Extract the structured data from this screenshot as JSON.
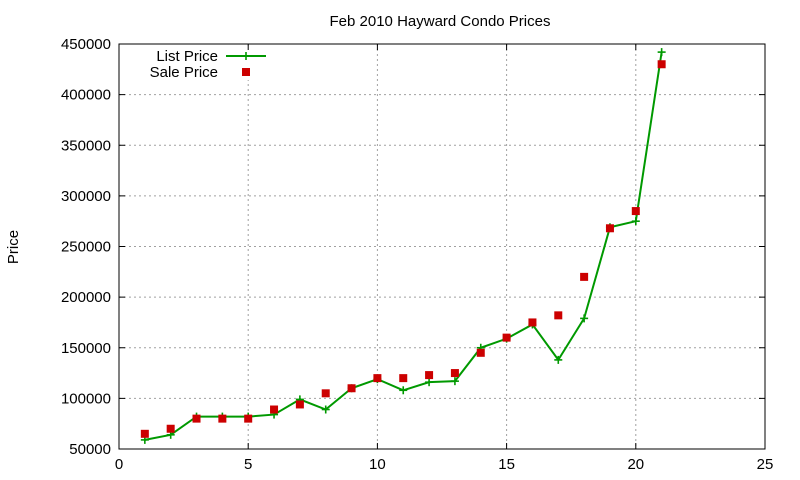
{
  "chart_data": {
    "type": "scatter",
    "title": "Feb 2010 Hayward Condo Prices",
    "xlabel": "",
    "ylabel": "Price",
    "xlim": [
      0,
      25
    ],
    "ylim": [
      50000,
      450000
    ],
    "xticks": [
      0,
      5,
      10,
      15,
      20,
      25
    ],
    "yticks": [
      50000,
      100000,
      150000,
      200000,
      250000,
      300000,
      350000,
      400000,
      450000
    ],
    "grid": true,
    "legend_position": "top-left",
    "series": [
      {
        "name": "List Price",
        "style": "linespoints",
        "color": "#009900",
        "marker": "plus",
        "x": [
          1,
          2,
          3,
          4,
          5,
          6,
          7,
          8,
          9,
          10,
          11,
          12,
          13,
          14,
          15,
          16,
          17,
          18,
          19,
          20,
          21
        ],
        "y": [
          59000,
          64000,
          82000,
          82000,
          82000,
          84000,
          99000,
          89000,
          110000,
          119000,
          108000,
          116000,
          117000,
          150000,
          159000,
          173000,
          138000,
          179000,
          269000,
          275000,
          442000
        ]
      },
      {
        "name": "Sale Price",
        "style": "points",
        "color": "#cc0000",
        "marker": "square",
        "x": [
          1,
          2,
          3,
          4,
          5,
          6,
          7,
          8,
          9,
          10,
          11,
          12,
          13,
          14,
          15,
          16,
          17,
          18,
          19,
          20,
          21
        ],
        "y": [
          65000,
          70000,
          80000,
          80000,
          80000,
          89000,
          94000,
          105000,
          110000,
          120000,
          120000,
          123000,
          125000,
          145000,
          160000,
          175000,
          182000,
          220000,
          268000,
          285000,
          430000
        ]
      }
    ]
  }
}
